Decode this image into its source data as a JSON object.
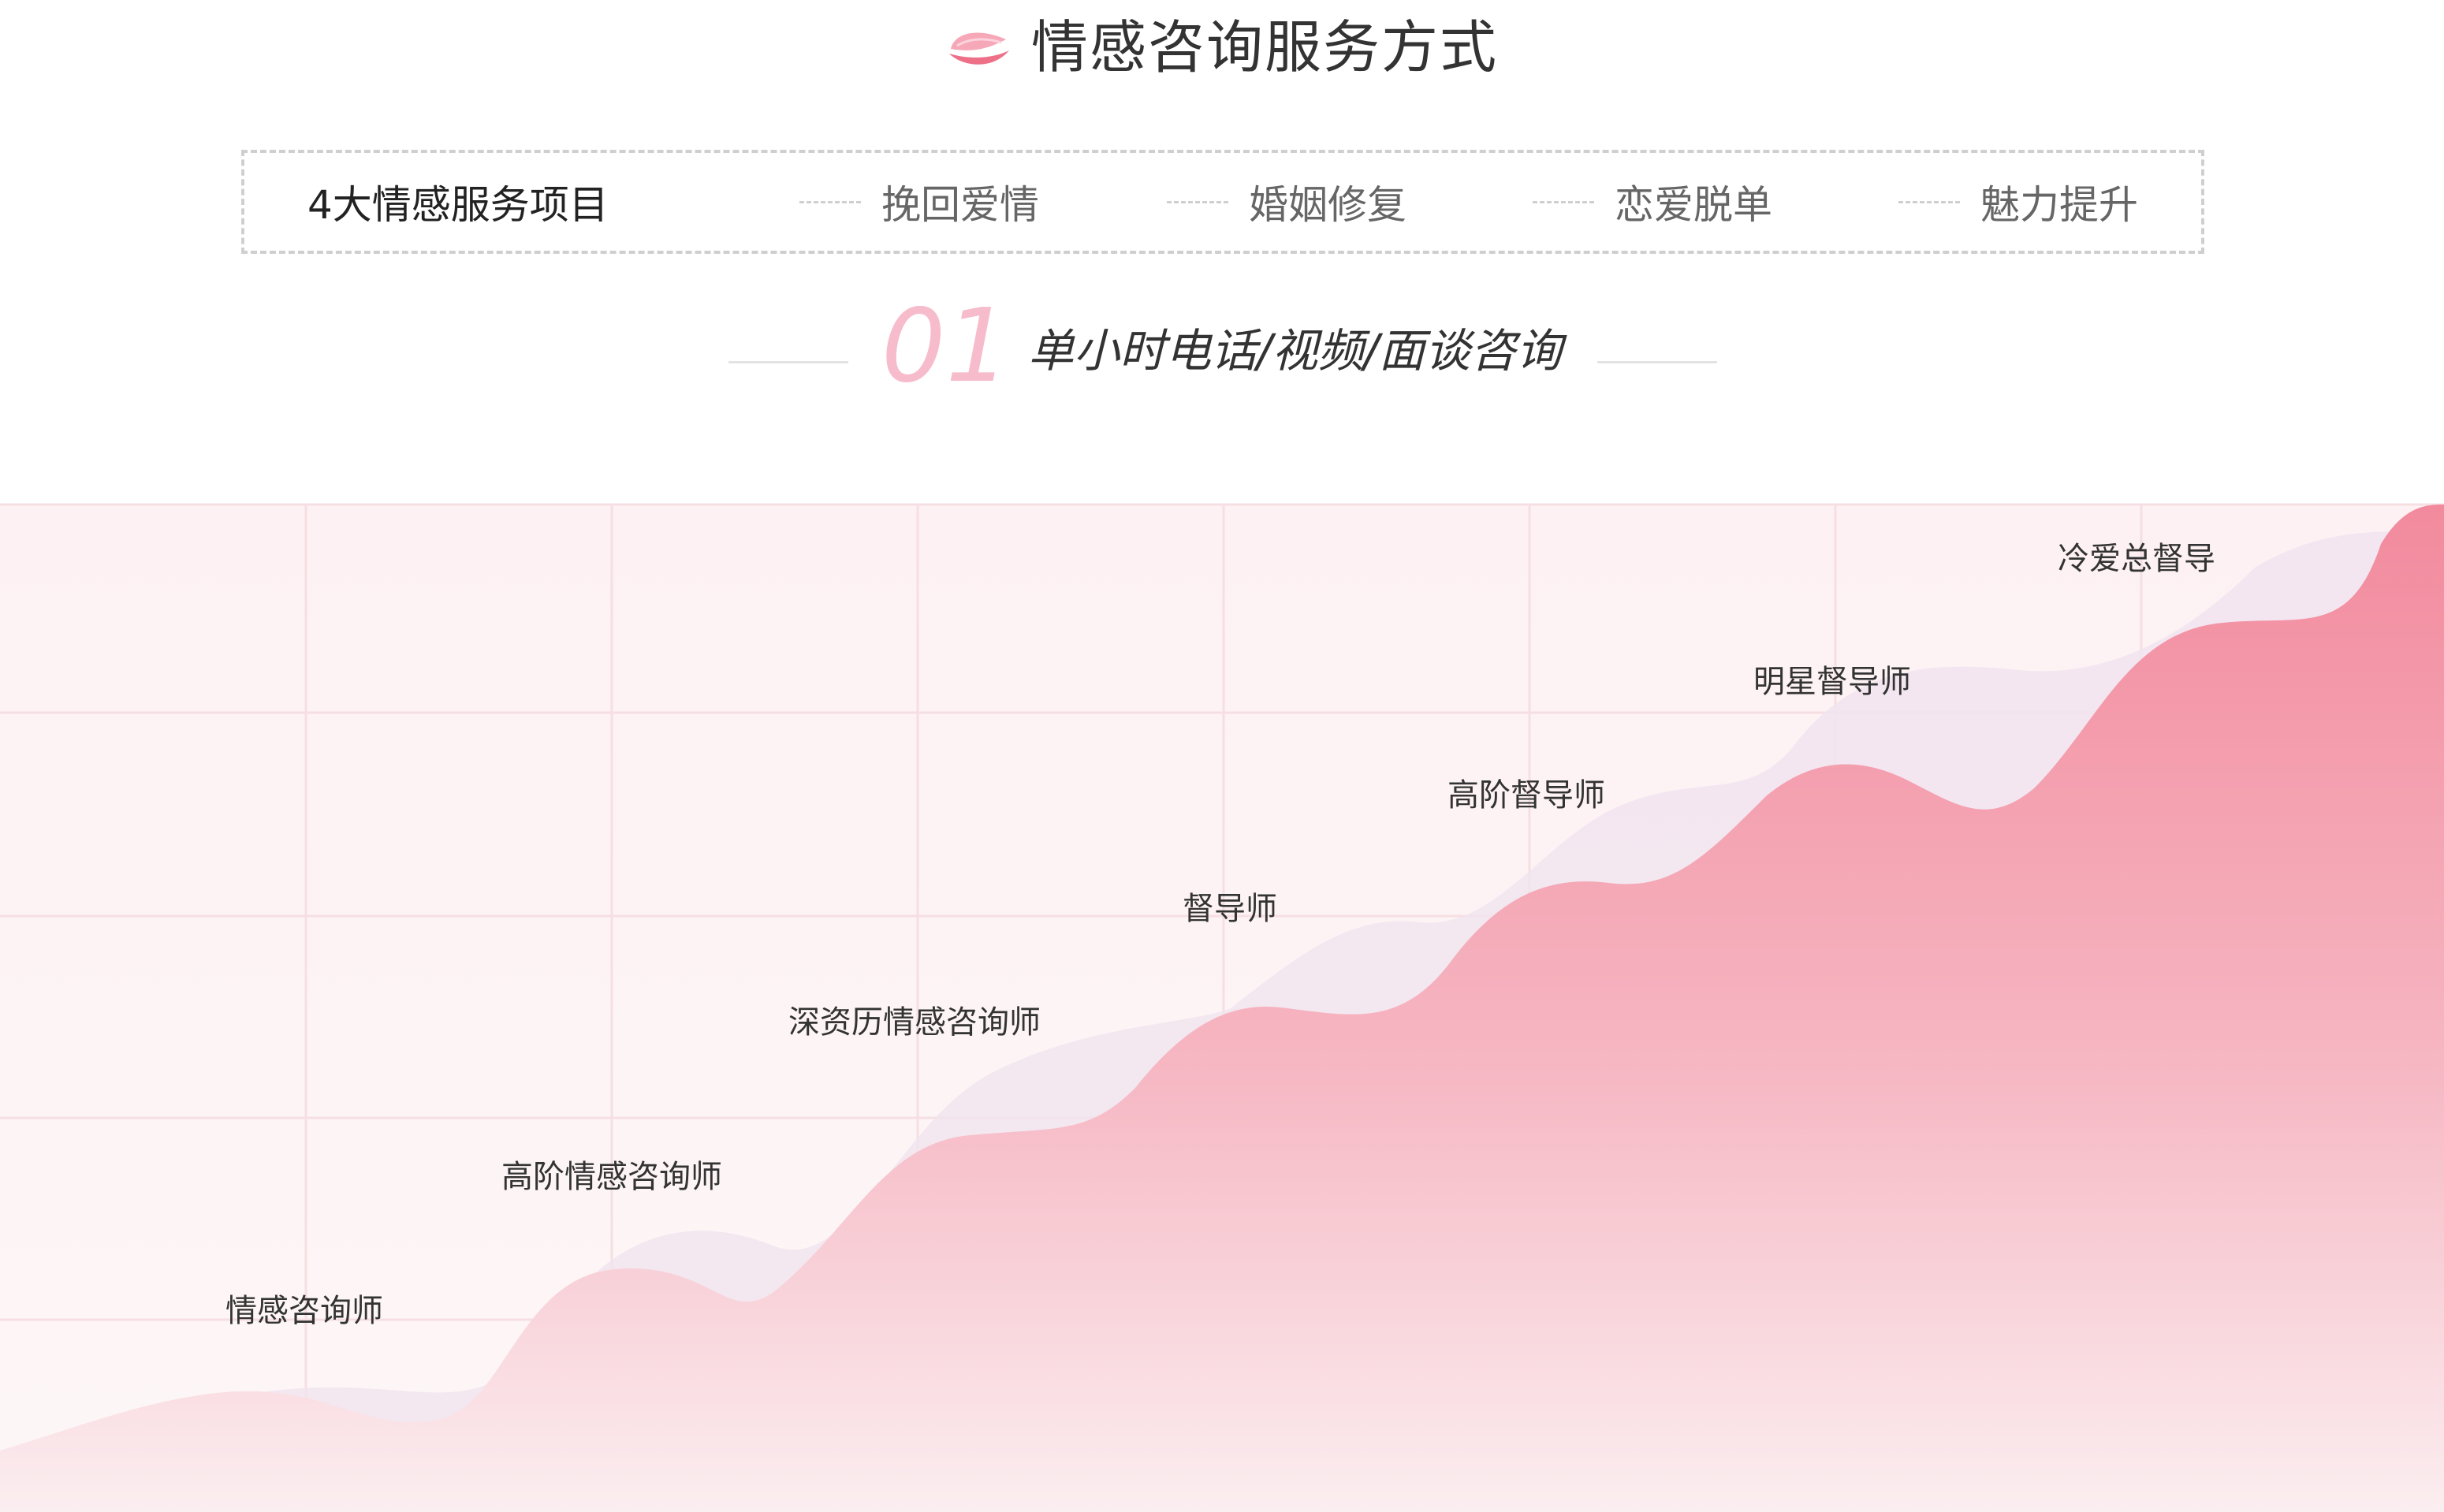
{
  "header": {
    "title": "情感咨询服务方式",
    "icon": "petal-icon",
    "accent": "#f0798f"
  },
  "tabs": {
    "title": "4大情感服务项目",
    "items": [
      {
        "label": "挽回爱情"
      },
      {
        "label": "婚姻修复"
      },
      {
        "label": "恋爱脱单"
      },
      {
        "label": "魅力提升"
      }
    ]
  },
  "section": {
    "number": "01",
    "subtitle": "单小时电话/视频/面谈咨询"
  },
  "levels": [
    {
      "label": "情感咨询师"
    },
    {
      "label": "高阶情感咨询师"
    },
    {
      "label": "深资历情感咨询师"
    },
    {
      "label": "督导师"
    },
    {
      "label": "高阶督导师"
    },
    {
      "label": "明星督导师"
    },
    {
      "label": "冷爱总督导"
    }
  ],
  "colors": {
    "wave_top": "#f28a9d",
    "wave_bottom": "#fbeef0",
    "back_wave": "#f2e6ee",
    "chart_bg": "#fdf3f4",
    "grid": "#f5dde1"
  }
}
